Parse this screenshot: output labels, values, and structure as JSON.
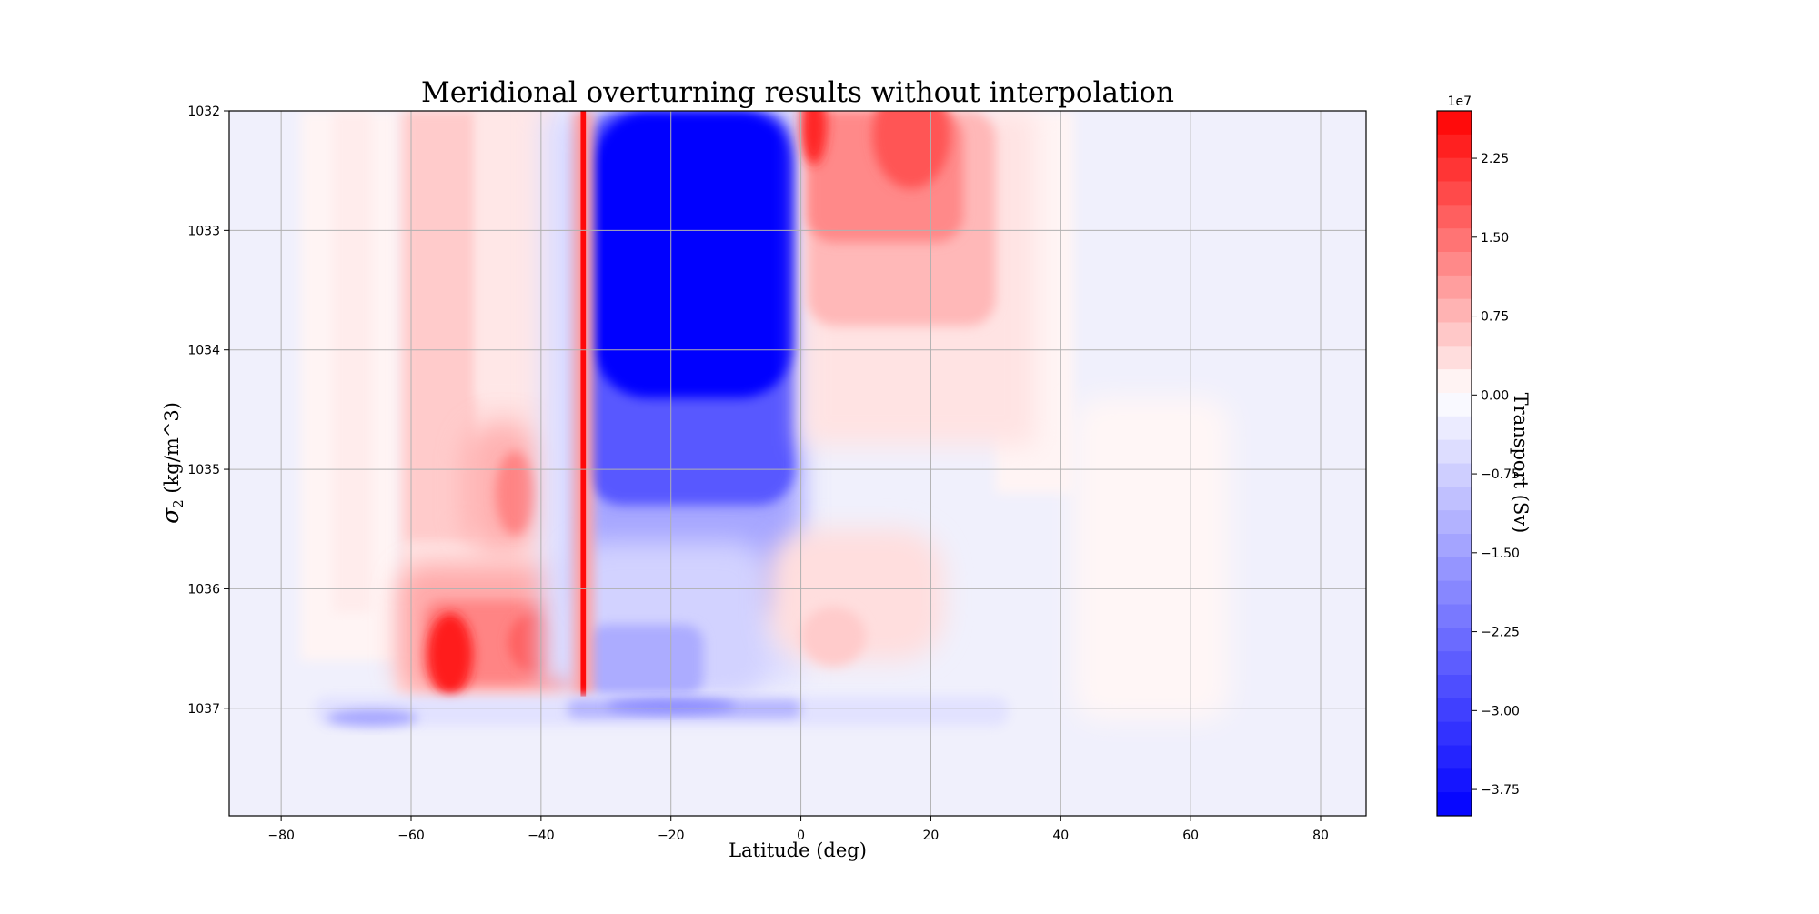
{
  "chart_data": {
    "type": "heatmap",
    "title": "Meridional overturning results without interpolation",
    "xlabel": "Latitude (deg)",
    "ylabel": "σ2 (kg/m^3)",
    "ylabel_symbol": "σ",
    "ylabel_subscript": "2",
    "ylabel_unit": " (kg/m^3)",
    "xlim": [
      -88,
      87
    ],
    "ylim": [
      1037.9,
      1032
    ],
    "x_ticks": [
      -80,
      -60,
      -40,
      -20,
      0,
      20,
      40,
      60,
      80
    ],
    "x_tick_labels": [
      "−80",
      "−60",
      "−40",
      "−20",
      "0",
      "20",
      "40",
      "60",
      "80"
    ],
    "y_ticks": [
      1032,
      1033,
      1034,
      1035,
      1036,
      1037
    ],
    "y_tick_labels": [
      "1032",
      "1033",
      "1034",
      "1035",
      "1036",
      "1037"
    ],
    "grid": true,
    "colorbar": {
      "label": "Transport (Sv)",
      "multiplier": "1e7",
      "range": [
        -4.0,
        2.7
      ],
      "ticks": [
        2.25,
        1.5,
        0.75,
        0.0,
        -0.75,
        -1.5,
        -2.25,
        -3.0,
        -3.75
      ],
      "tick_labels": [
        "2.25",
        "1.50",
        "0.75",
        "0.00",
        "−0.75",
        "−1.50",
        "−2.25",
        "−3.00",
        "−3.75"
      ],
      "levels": 30,
      "colormap": "bwr",
      "color_min": "#0000ff",
      "color_mid": "#ffffff",
      "color_max": "#ff0000"
    },
    "regions": [
      {
        "name": "southern-ocean-positive-cell",
        "lat": [
          -62,
          -30
        ],
        "sigma": [
          1032.0,
          1036.9
        ],
        "value": 0.3
      },
      {
        "name": "deep-positive-core",
        "lat": [
          -58,
          -50
        ],
        "sigma": [
          1036.3,
          1036.9
        ],
        "value": 2.0
      },
      {
        "name": "slope-positive-band",
        "lat": [
          -50,
          -40
        ],
        "sigma": [
          1034.8,
          1035.6
        ],
        "value": 1.0
      },
      {
        "name": "narrow-positive-jet",
        "lat": [
          -34,
          -33
        ],
        "sigma": [
          1032.0,
          1036.9
        ],
        "value": 2.5
      },
      {
        "name": "subtropical-negative-cell",
        "lat": [
          -32,
          0
        ],
        "sigma": [
          1032.0,
          1036.9
        ],
        "value": -3.9
      },
      {
        "name": "northern-positive-cell",
        "lat": [
          0,
          30
        ],
        "sigma": [
          1032.0,
          1034.9
        ],
        "value": 1.5
      },
      {
        "name": "bottom-negative-cell",
        "lat": [
          -75,
          30
        ],
        "sigma": [
          1036.9,
          1037.15
        ],
        "value": -1.0
      }
    ]
  }
}
